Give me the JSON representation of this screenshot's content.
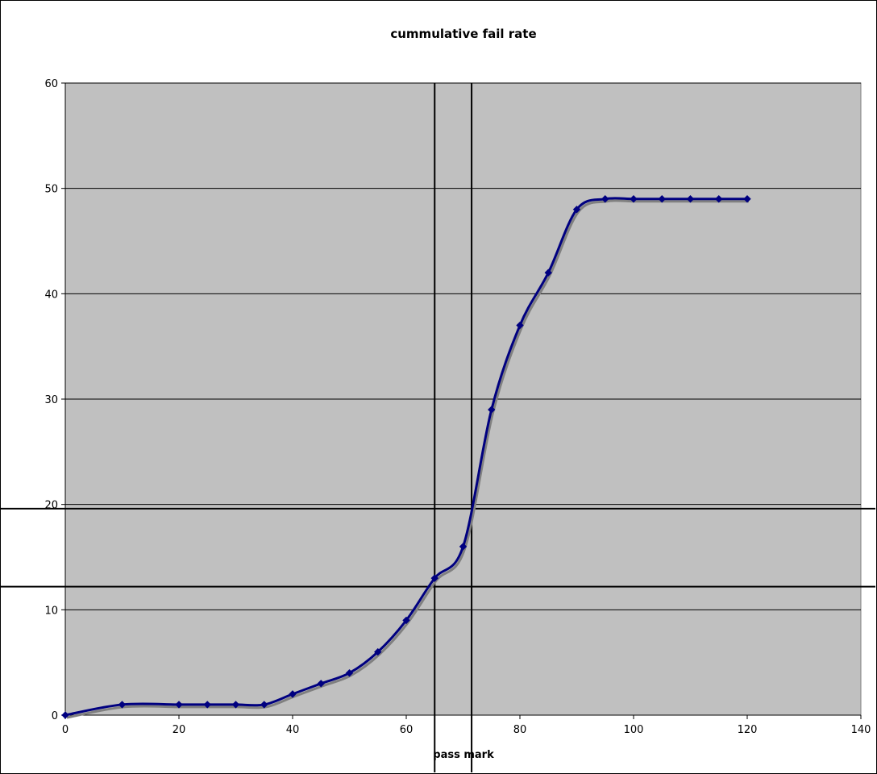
{
  "chart_data": {
    "type": "line",
    "title": "cummulative fail rate",
    "xlabel": "pass mark",
    "ylabel": "",
    "xlim": [
      0,
      140
    ],
    "ylim": [
      0,
      60
    ],
    "x_ticks": [
      0,
      20,
      40,
      60,
      80,
      100,
      120,
      140
    ],
    "y_ticks": [
      0,
      10,
      20,
      30,
      40,
      50,
      60
    ],
    "grid": "horizontal",
    "legend": "none",
    "plot_background": "#c0c0c0",
    "series": [
      {
        "color": "#000080",
        "smoothed": true,
        "marker": "diamond",
        "x": [
          0,
          10,
          20,
          25,
          30,
          35,
          40,
          45,
          50,
          55,
          60,
          65,
          70,
          75,
          80,
          85,
          90,
          95,
          100,
          105,
          110,
          115,
          120
        ],
        "y": [
          0,
          1,
          1,
          1,
          1,
          1,
          2,
          3,
          4,
          6,
          9,
          13,
          16,
          29,
          37,
          42,
          48,
          49,
          49,
          49,
          49,
          49,
          49
        ]
      }
    ],
    "reference_lines": {
      "vertical_x": [
        65,
        71.5
      ],
      "horizontal_y": [
        12.2,
        19.6
      ]
    }
  }
}
